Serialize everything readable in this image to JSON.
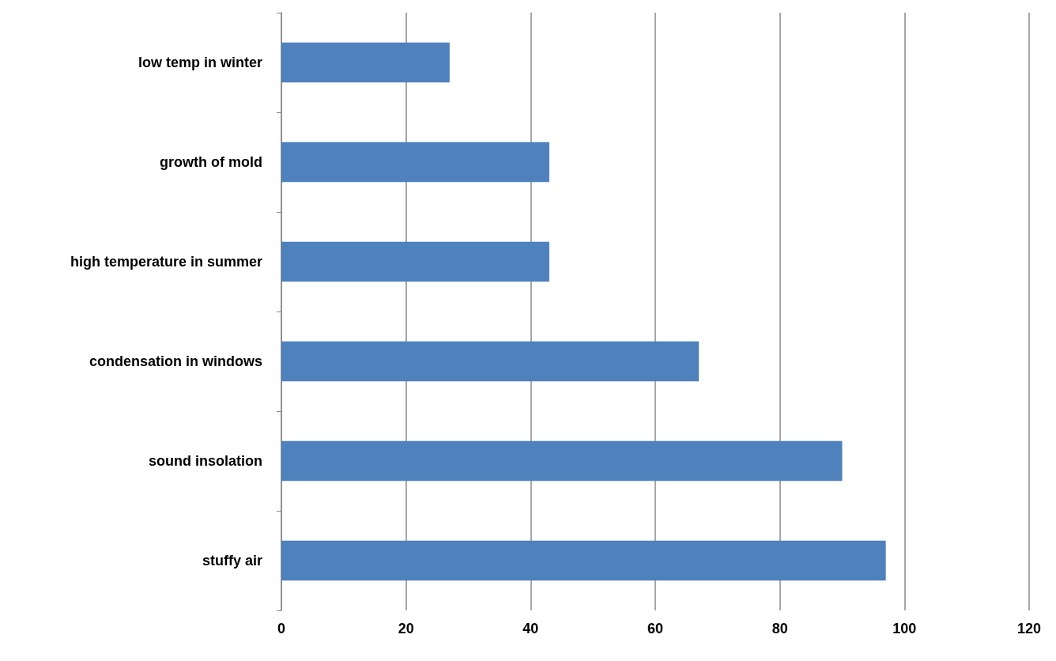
{
  "chart_data": {
    "type": "bar",
    "orientation": "horizontal",
    "categories": [
      "low temp in winter",
      "growth of mold",
      "high temperature in summer",
      "condensation in windows",
      "sound insolation",
      "stuffy air"
    ],
    "values": [
      27,
      43,
      43,
      67,
      90,
      97
    ],
    "color": "#4f81bd",
    "xlim": [
      0,
      120
    ],
    "xticks": [
      0,
      20,
      40,
      60,
      80,
      100,
      120
    ],
    "grid": "x"
  }
}
